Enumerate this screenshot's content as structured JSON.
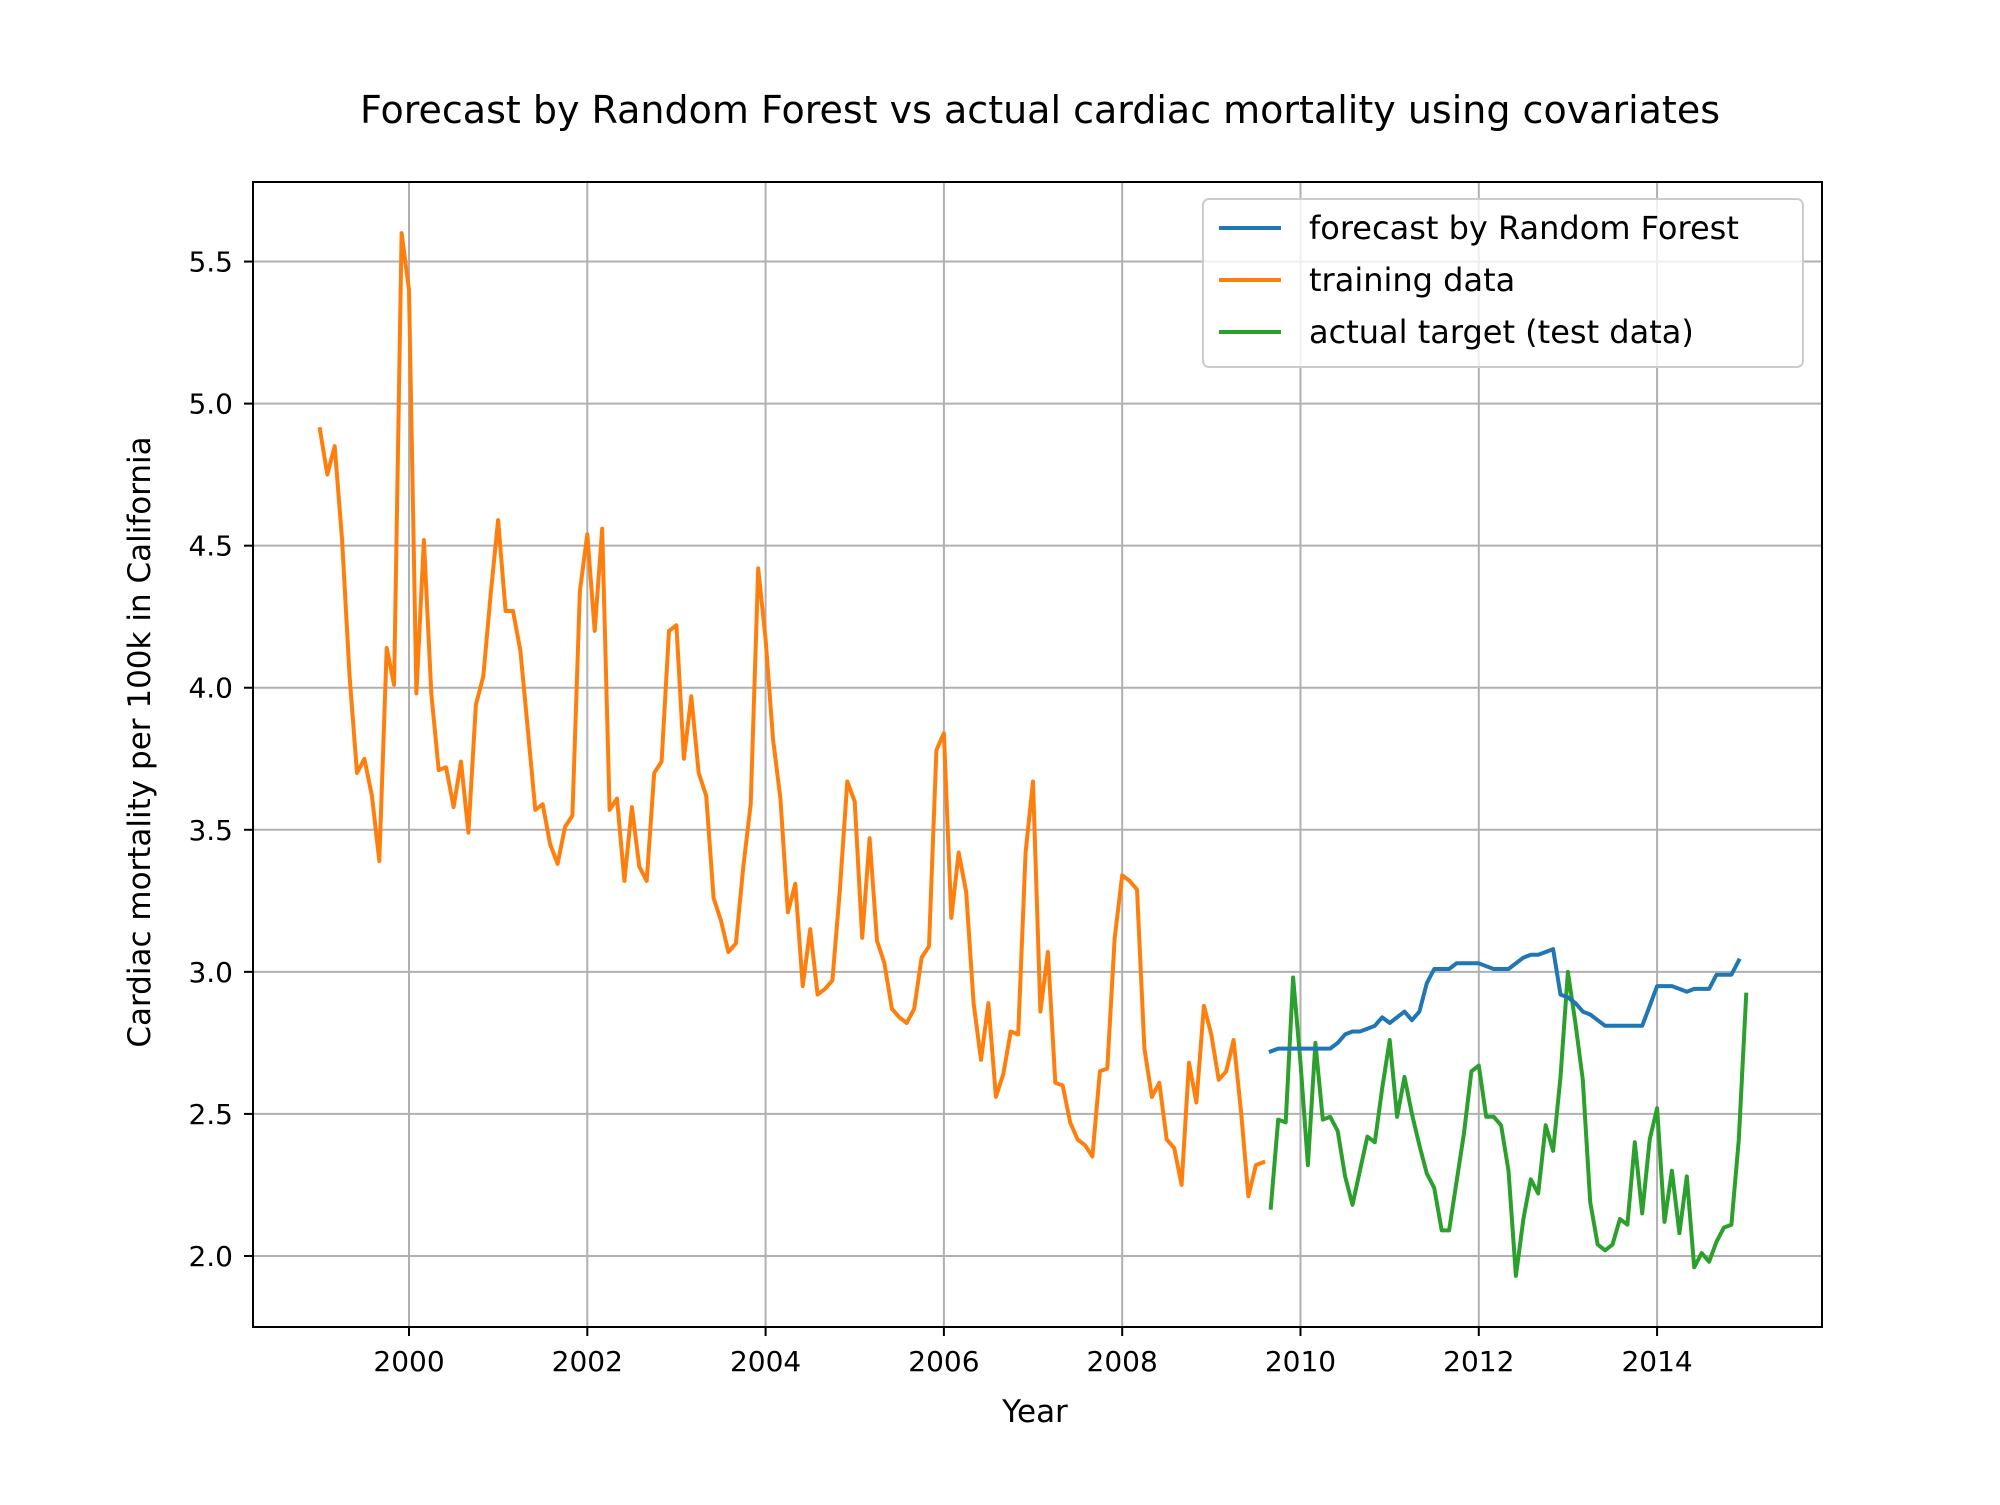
{
  "chart_data": {
    "type": "line",
    "title": "Forecast by Random Forest vs actual cardiac mortality using covariates",
    "xlabel": "Year",
    "ylabel": "Cardiac mortality per 100k in California",
    "xlim": [
      1998.25,
      2015.85
    ],
    "ylim": [
      1.75,
      5.78
    ],
    "x_ticks": [
      2000,
      2002,
      2004,
      2006,
      2008,
      2010,
      2012,
      2014
    ],
    "x_tick_labels": [
      "2000",
      "2002",
      "2004",
      "2006",
      "2008",
      "2010",
      "2012",
      "2014"
    ],
    "y_ticks": [
      2.0,
      2.5,
      3.0,
      3.5,
      4.0,
      4.5,
      5.0,
      5.5
    ],
    "y_tick_labels": [
      "2.0",
      "2.5",
      "3.0",
      "3.5",
      "4.0",
      "4.5",
      "5.0",
      "5.5"
    ],
    "grid": true,
    "legend_position": "top-right",
    "series": [
      {
        "name": "forecast by Random Forest",
        "color": "#1f77b4",
        "x_start": 2009.667,
        "step": 0.08333,
        "values": [
          2.72,
          2.73,
          2.73,
          2.73,
          2.73,
          2.73,
          2.73,
          2.73,
          2.73,
          2.75,
          2.78,
          2.79,
          2.79,
          2.8,
          2.81,
          2.84,
          2.82,
          2.84,
          2.86,
          2.83,
          2.86,
          2.96,
          3.01,
          3.01,
          3.01,
          3.03,
          3.03,
          3.03,
          3.03,
          3.02,
          3.01,
          3.01,
          3.01,
          3.03,
          3.05,
          3.06,
          3.06,
          3.07,
          3.08,
          2.92,
          2.91,
          2.89,
          2.86,
          2.85,
          2.83,
          2.81,
          2.81,
          2.81,
          2.81,
          2.81,
          2.81,
          2.88,
          2.95,
          2.95,
          2.95,
          2.94,
          2.93,
          2.94,
          2.94,
          2.94,
          2.99,
          2.99,
          2.99,
          3.04
        ]
      },
      {
        "name": "training data",
        "color": "#ff7f0e",
        "x_start": 1999.0,
        "step": 0.08333,
        "values": [
          4.91,
          4.75,
          4.85,
          4.52,
          4.04,
          3.7,
          3.75,
          3.62,
          3.39,
          4.14,
          4.01,
          5.6,
          5.4,
          3.98,
          4.52,
          3.98,
          3.71,
          3.72,
          3.58,
          3.74,
          3.49,
          3.94,
          4.04,
          4.33,
          4.59,
          4.27,
          4.27,
          4.13,
          3.85,
          3.57,
          3.59,
          3.45,
          3.38,
          3.51,
          3.55,
          4.34,
          4.54,
          4.2,
          4.56,
          3.57,
          3.61,
          3.32,
          3.58,
          3.37,
          3.32,
          3.7,
          3.74,
          4.2,
          4.22,
          3.75,
          3.97,
          3.7,
          3.62,
          3.26,
          3.18,
          3.07,
          3.1,
          3.37,
          3.59,
          4.42,
          4.17,
          3.82,
          3.61,
          3.21,
          3.31,
          2.95,
          3.15,
          2.92,
          2.94,
          2.97,
          3.29,
          3.67,
          3.6,
          3.12,
          3.47,
          3.11,
          3.03,
          2.87,
          2.84,
          2.82,
          2.87,
          3.05,
          3.09,
          3.78,
          3.84,
          3.19,
          3.42,
          3.28,
          2.89,
          2.69,
          2.89,
          2.56,
          2.64,
          2.79,
          2.78,
          3.42,
          3.67,
          2.86,
          3.07,
          2.61,
          2.6,
          2.47,
          2.41,
          2.39,
          2.35,
          2.65,
          2.66,
          3.12,
          3.34,
          3.32,
          3.29,
          2.73,
          2.56,
          2.61,
          2.41,
          2.38,
          2.25,
          2.68,
          2.54,
          2.88,
          2.78,
          2.62,
          2.65,
          2.76,
          2.51,
          2.21,
          2.32,
          2.33
        ]
      },
      {
        "name": "actual target (test data)",
        "color": "#2ca02c",
        "x_start": 2009.667,
        "step": 0.08333,
        "values": [
          2.17,
          2.48,
          2.47,
          2.98,
          2.68,
          2.32,
          2.75,
          2.48,
          2.49,
          2.44,
          2.28,
          2.18,
          2.3,
          2.42,
          2.4,
          2.59,
          2.76,
          2.49,
          2.63,
          2.5,
          2.39,
          2.29,
          2.24,
          2.09,
          2.09,
          2.26,
          2.43,
          2.65,
          2.67,
          2.49,
          2.49,
          2.46,
          2.3,
          1.93,
          2.13,
          2.27,
          2.22,
          2.46,
          2.37,
          2.63,
          3.0,
          2.82,
          2.62,
          2.19,
          2.04,
          2.02,
          2.04,
          2.13,
          2.11,
          2.4,
          2.15,
          2.41,
          2.52,
          2.12,
          2.3,
          2.08,
          2.28,
          1.96,
          2.01,
          1.98,
          2.05,
          2.1,
          2.11,
          2.41,
          2.92
        ]
      }
    ]
  }
}
